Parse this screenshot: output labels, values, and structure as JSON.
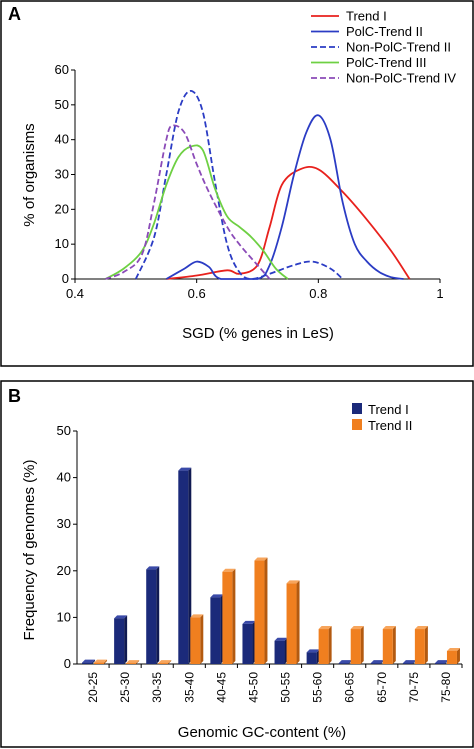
{
  "chart_data": [
    {
      "type": "line",
      "panel_label": "A",
      "title": "",
      "xlabel": "SGD (% genes in LeS)",
      "ylabel": "% of organisms",
      "xlim": [
        0.4,
        1
      ],
      "ylim": [
        0,
        60
      ],
      "xticks": [
        "0.4",
        "0.6",
        "0.8",
        "1"
      ],
      "yticks": [
        "0",
        "10",
        "20",
        "30",
        "40",
        "50",
        "60"
      ],
      "grid": false,
      "legend_position": "top-right",
      "series": [
        {
          "name": "Trend I",
          "color": "#e8211d",
          "dash": "solid",
          "points": [
            [
              0.55,
              0
            ],
            [
              0.6,
              1
            ],
            [
              0.65,
              2.5
            ],
            [
              0.67,
              1.5
            ],
            [
              0.7,
              4
            ],
            [
              0.72,
              15
            ],
            [
              0.74,
              27
            ],
            [
              0.77,
              31.5
            ],
            [
              0.8,
              31.5
            ],
            [
              0.84,
              25
            ],
            [
              0.88,
              17
            ],
            [
              0.92,
              8
            ],
            [
              0.95,
              0
            ]
          ]
        },
        {
          "name": "PolC-Trend II",
          "color": "#2b3cc4",
          "dash": "solid",
          "points": [
            [
              0.55,
              0
            ],
            [
              0.58,
              3
            ],
            [
              0.6,
              5
            ],
            [
              0.62,
              3.5
            ],
            [
              0.64,
              0
            ],
            [
              0.7,
              0
            ],
            [
              0.72,
              4
            ],
            [
              0.74,
              15
            ],
            [
              0.76,
              30
            ],
            [
              0.78,
              42
            ],
            [
              0.8,
              47
            ],
            [
              0.82,
              40
            ],
            [
              0.84,
              22
            ],
            [
              0.86,
              10
            ],
            [
              0.88,
              5
            ],
            [
              0.9,
              2
            ],
            [
              0.92,
              0.5
            ],
            [
              0.94,
              0
            ]
          ]
        },
        {
          "name": "Non-PolC-Trend II",
          "color": "#2b3cc4",
          "dash": "dashed",
          "points": [
            [
              0.5,
              0
            ],
            [
              0.53,
              12
            ],
            [
              0.55,
              30
            ],
            [
              0.57,
              48
            ],
            [
              0.59,
              54
            ],
            [
              0.61,
              48
            ],
            [
              0.63,
              28
            ],
            [
              0.65,
              10
            ],
            [
              0.67,
              2
            ],
            [
              0.69,
              0
            ],
            [
              0.72,
              1.5
            ],
            [
              0.76,
              4
            ],
            [
              0.79,
              5
            ],
            [
              0.82,
              3
            ],
            [
              0.84,
              0
            ]
          ]
        },
        {
          "name": "PolC-Trend III",
          "color": "#6ed043",
          "dash": "solid",
          "points": [
            [
              0.45,
              0
            ],
            [
              0.48,
              3
            ],
            [
              0.51,
              8
            ],
            [
              0.53,
              16
            ],
            [
              0.55,
              27
            ],
            [
              0.57,
              35
            ],
            [
              0.59,
              38
            ],
            [
              0.61,
              37
            ],
            [
              0.63,
              26
            ],
            [
              0.65,
              18
            ],
            [
              0.67,
              15
            ],
            [
              0.69,
              12
            ],
            [
              0.71,
              8
            ],
            [
              0.73,
              3
            ],
            [
              0.75,
              0
            ]
          ]
        },
        {
          "name": "Non-PolC-Trend IV",
          "color": "#8b4bb8",
          "dash": "dashed",
          "points": [
            [
              0.45,
              0
            ],
            [
              0.48,
              2
            ],
            [
              0.51,
              7
            ],
            [
              0.53,
              22
            ],
            [
              0.55,
              40
            ],
            [
              0.56,
              44
            ],
            [
              0.58,
              42
            ],
            [
              0.6,
              33
            ],
            [
              0.62,
              25
            ],
            [
              0.65,
              15
            ],
            [
              0.67,
              10
            ],
            [
              0.7,
              4
            ],
            [
              0.72,
              0
            ]
          ]
        }
      ]
    },
    {
      "type": "bar",
      "panel_label": "B",
      "title": "",
      "xlabel": "Genomic GC-content (%)",
      "ylabel": "Frequency of genomes (%)",
      "ylim": [
        0,
        50
      ],
      "yticks": [
        "0",
        "10",
        "20",
        "30",
        "40",
        "50"
      ],
      "grid": false,
      "legend_position": "top-right",
      "categories": [
        "20-25",
        "25-30",
        "30-35",
        "35-40",
        "40-45",
        "45-50",
        "50-55",
        "55-60",
        "60-65",
        "65-70",
        "70-75",
        "75-80"
      ],
      "series": [
        {
          "name": "Trend I",
          "color": "#1b2a7a",
          "values": [
            0.3,
            9.8,
            20.3,
            41.5,
            14.3,
            8.6,
            5.0,
            2.5,
            0.2,
            0.2,
            0.2,
            0.2
          ]
        },
        {
          "name": "Trend II",
          "color": "#f07f1f",
          "values": [
            0.3,
            0.2,
            0.2,
            10.0,
            19.8,
            22.2,
            17.3,
            7.5,
            7.5,
            7.5,
            7.5,
            2.8
          ]
        }
      ]
    }
  ]
}
